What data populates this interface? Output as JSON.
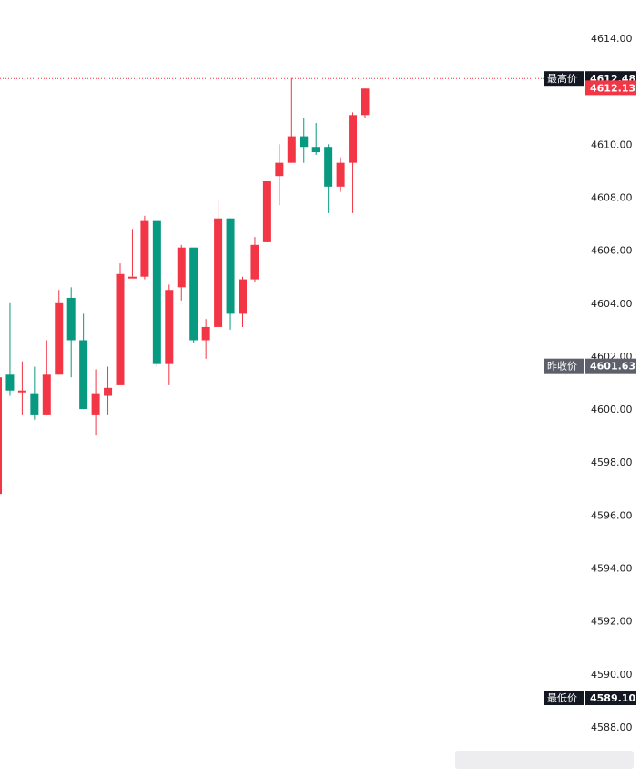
{
  "chart_data": {
    "type": "candlestick",
    "colors": {
      "up": "#f23645",
      "down": "#089981",
      "high_line": "#f23645",
      "tag_dark": "#131722",
      "tag_gray": "#5d606b",
      "tag_current": "#f23645"
    },
    "yaxis": {
      "range": [
        4587.0,
        4615.5
      ],
      "ticks": [
        4614.0,
        4612.0,
        4610.0,
        4608.0,
        4606.0,
        4604.0,
        4602.0,
        4600.0,
        4598.0,
        4596.0,
        4594.0,
        4592.0,
        4590.0,
        4588.0
      ],
      "tick_labels": [
        "4614.00",
        "",
        "4610.00",
        "4608.00",
        "4606.00",
        "4604.00",
        "4602.00",
        "4600.00",
        "4598.00",
        "4596.00",
        "4594.00",
        "4592.00",
        "4590.00",
        "4588.00"
      ]
    },
    "levels": {
      "high": {
        "label": "最高价",
        "value": 4612.48,
        "value_text": "4612.48"
      },
      "current": {
        "value": 4612.13,
        "value_text": "4612.13"
      },
      "prev_close": {
        "label": "昨收价",
        "value": 4601.63,
        "value_text": "4601.63"
      },
      "low": {
        "label": "最低价",
        "value": 4589.1,
        "value_text": "4589.10"
      }
    },
    "candles": [
      {
        "o": 4596.8,
        "h": 4601.2,
        "l": 4596.8,
        "c": 4601.2
      },
      {
        "o": 4601.3,
        "h": 4604.0,
        "l": 4600.5,
        "c": 4600.7
      },
      {
        "o": 4600.7,
        "h": 4601.8,
        "l": 4599.8,
        "c": 4600.7
      },
      {
        "o": 4600.6,
        "h": 4601.6,
        "l": 4599.6,
        "c": 4599.8
      },
      {
        "o": 4599.8,
        "h": 4602.6,
        "l": 4599.8,
        "c": 4601.3
      },
      {
        "o": 4601.3,
        "h": 4604.5,
        "l": 4601.3,
        "c": 4604.0
      },
      {
        "o": 4604.2,
        "h": 4604.6,
        "l": 4601.2,
        "c": 4602.6
      },
      {
        "o": 4602.6,
        "h": 4603.6,
        "l": 4600.0,
        "c": 4600.0
      },
      {
        "o": 4599.8,
        "h": 4601.5,
        "l": 4599.0,
        "c": 4600.6
      },
      {
        "o": 4600.5,
        "h": 4601.6,
        "l": 4599.8,
        "c": 4600.8
      },
      {
        "o": 4600.9,
        "h": 4605.5,
        "l": 4600.9,
        "c": 4605.1
      },
      {
        "o": 4605.0,
        "h": 4606.8,
        "l": 4605.0,
        "c": 4605.0
      },
      {
        "o": 4605.0,
        "h": 4607.3,
        "l": 4604.9,
        "c": 4607.1
      },
      {
        "o": 4607.1,
        "h": 4607.1,
        "l": 4601.6,
        "c": 4601.7
      },
      {
        "o": 4601.7,
        "h": 4604.7,
        "l": 4600.9,
        "c": 4604.5
      },
      {
        "o": 4604.6,
        "h": 4606.2,
        "l": 4604.1,
        "c": 4606.1
      },
      {
        "o": 4606.1,
        "h": 4606.1,
        "l": 4602.5,
        "c": 4602.6
      },
      {
        "o": 4602.6,
        "h": 4603.4,
        "l": 4601.9,
        "c": 4603.1
      },
      {
        "o": 4603.1,
        "h": 4607.9,
        "l": 4603.1,
        "c": 4607.2
      },
      {
        "o": 4607.2,
        "h": 4607.2,
        "l": 4603.0,
        "c": 4603.6
      },
      {
        "o": 4603.6,
        "h": 4605.0,
        "l": 4603.1,
        "c": 4604.9
      },
      {
        "o": 4604.9,
        "h": 4606.5,
        "l": 4604.8,
        "c": 4606.2
      },
      {
        "o": 4606.3,
        "h": 4608.6,
        "l": 4606.3,
        "c": 4608.6
      },
      {
        "o": 4608.8,
        "h": 4610.0,
        "l": 4607.7,
        "c": 4609.3
      },
      {
        "o": 4609.3,
        "h": 4612.5,
        "l": 4609.3,
        "c": 4610.3
      },
      {
        "o": 4610.3,
        "h": 4611.0,
        "l": 4609.3,
        "c": 4609.9
      },
      {
        "o": 4609.9,
        "h": 4610.8,
        "l": 4609.6,
        "c": 4609.7
      },
      {
        "o": 4609.9,
        "h": 4610.0,
        "l": 4607.4,
        "c": 4608.4
      },
      {
        "o": 4608.4,
        "h": 4609.5,
        "l": 4608.2,
        "c": 4609.3
      },
      {
        "o": 4609.3,
        "h": 4611.2,
        "l": 4607.4,
        "c": 4611.1
      },
      {
        "o": 4611.1,
        "h": 4612.1,
        "l": 4611.0,
        "c": 4612.1
      }
    ]
  },
  "watermark": {
    "text": ""
  }
}
